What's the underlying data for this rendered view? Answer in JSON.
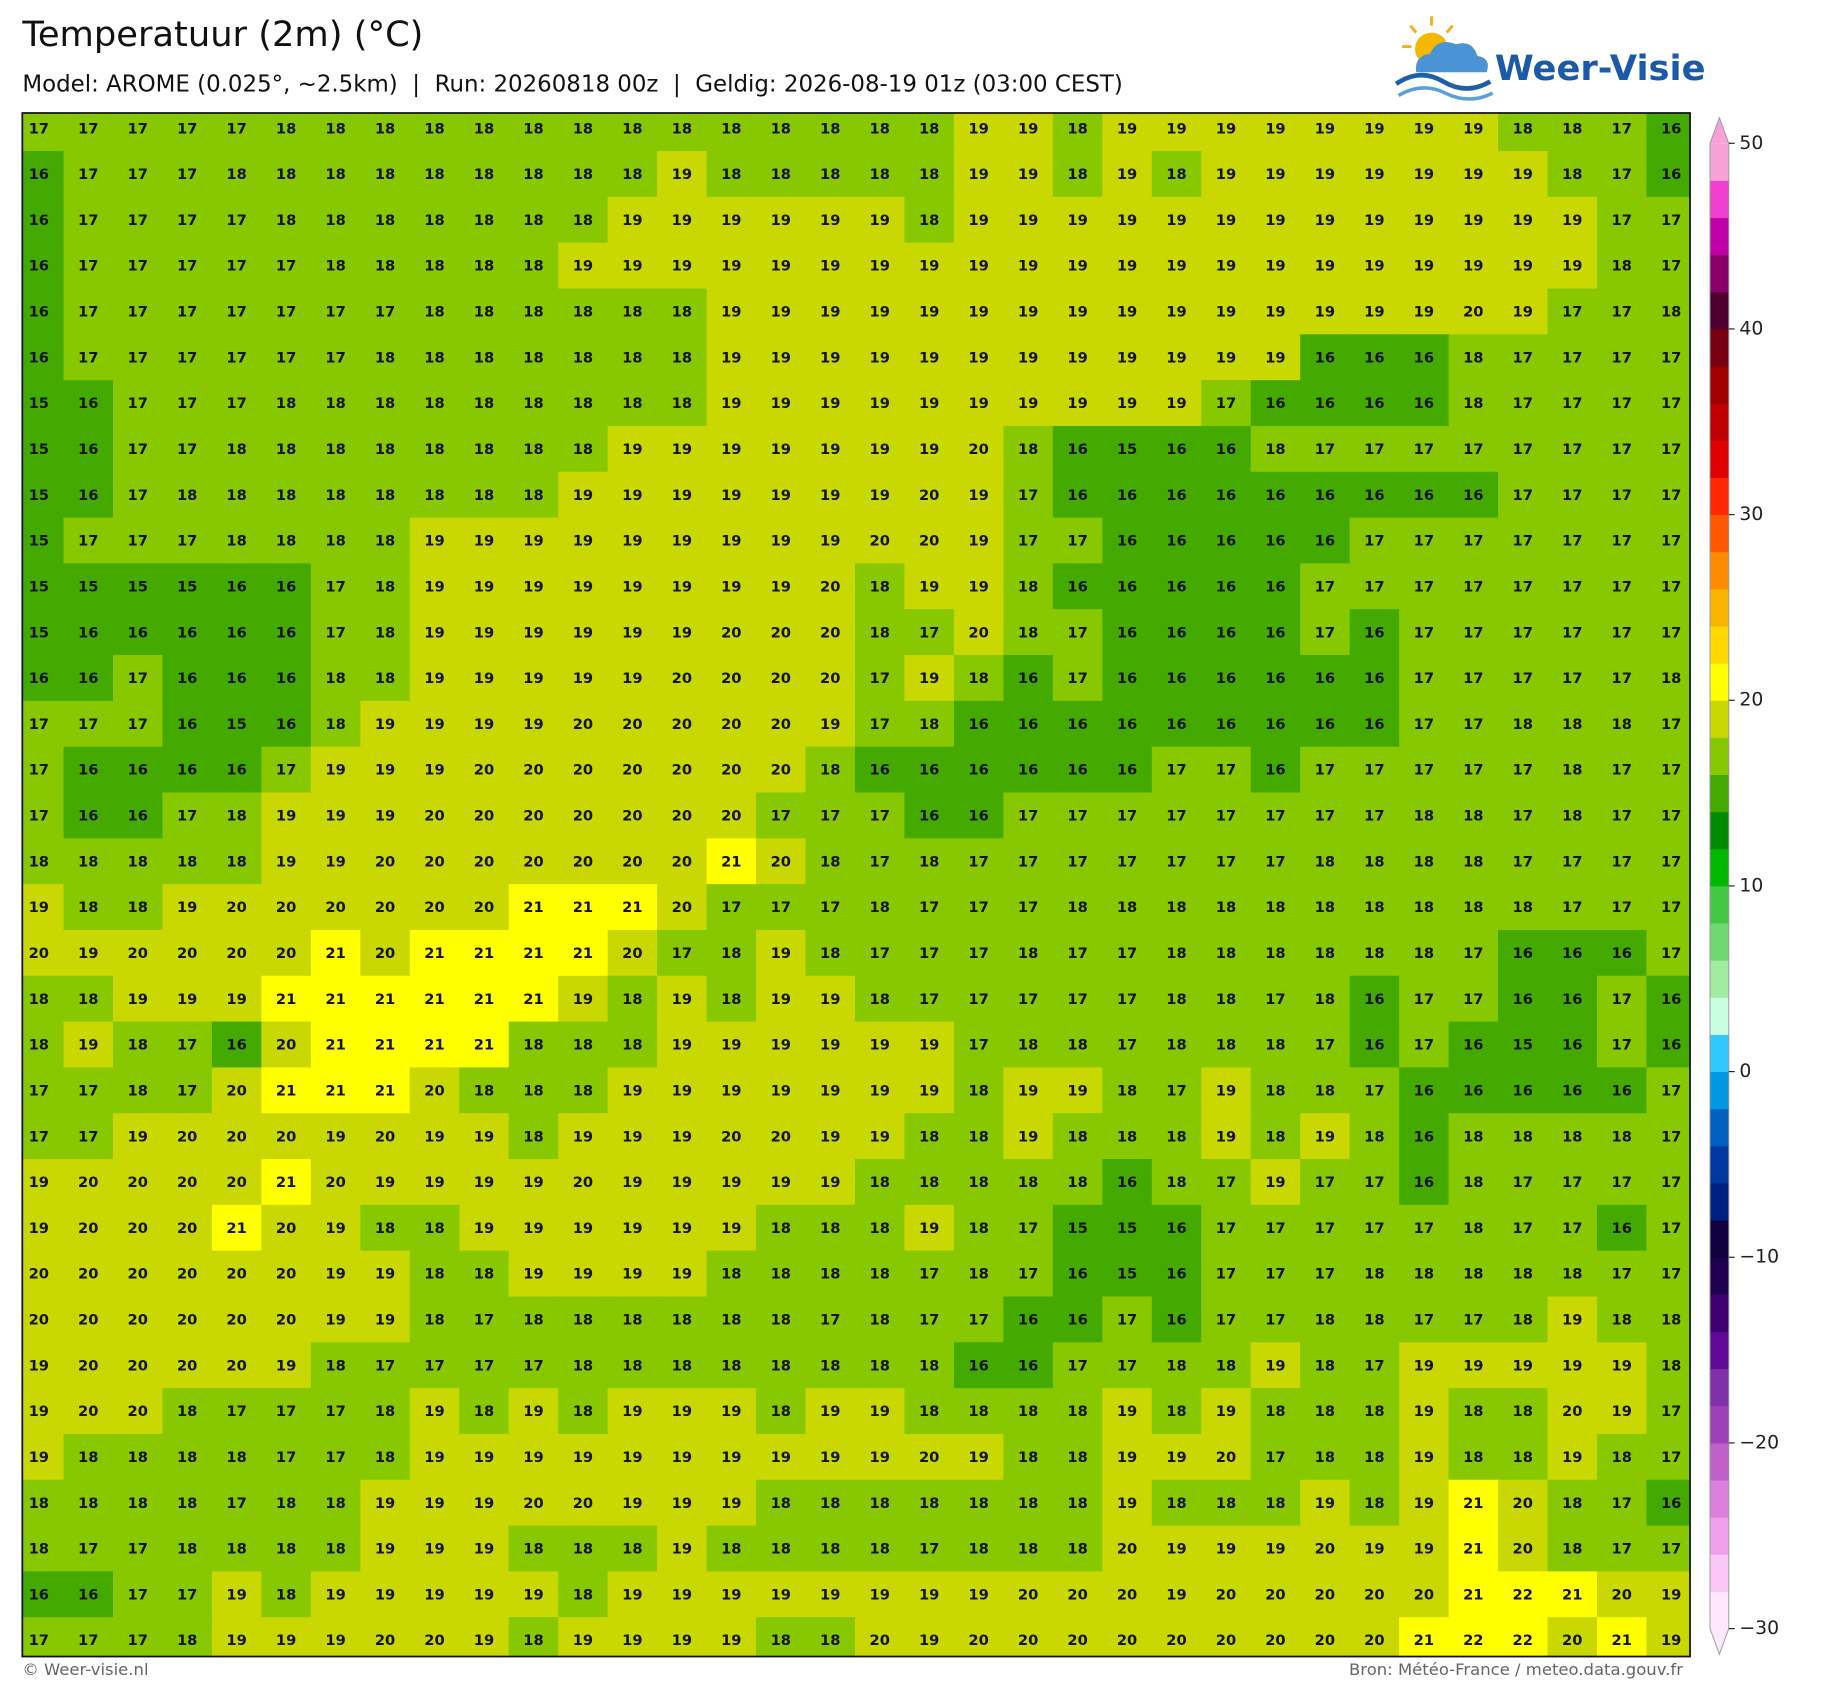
{
  "header": {
    "title": "Temperatuur (2m) (°C)",
    "subtitle": "Model: AROME (0.025°, ~2.5km)  |  Run: 20260818 00z  |  Geldig: 2026-08-19 01z (03:00 CEST)",
    "logo": "Weer-Visie"
  },
  "footer": {
    "left": "© Weer-visie.nl",
    "right": "Bron: Météo-France / meteo.data.gouv.fr"
  },
  "colorbar": {
    "lim": [
      -30,
      50
    ],
    "ticks": [
      {
        "value": -30,
        "label": "−30"
      },
      {
        "value": -20,
        "label": "−20"
      },
      {
        "value": -10,
        "label": "−10"
      },
      0,
      10,
      20,
      30,
      40,
      50
    ],
    "colors": [
      "#fde8fd",
      "#fbc8f5",
      "#f0a0ea",
      "#dd80dd",
      "#c060c8",
      "#a040b8",
      "#8030a8",
      "#600898",
      "#400070",
      "#200050",
      "#100040",
      "#002080",
      "#0038a0",
      "#0060c0",
      "#0098e0",
      "#30c8ff",
      "#c8ffe0",
      "#a0eca0",
      "#70d870",
      "#44c844",
      "#00b800",
      "#008c00",
      "#44aa00",
      "#88c800",
      "#c8d800",
      "#ffff00",
      "#ffd800",
      "#f8b400",
      "#ff8c00",
      "#ff5800",
      "#ff2800",
      "#e00000",
      "#c00000",
      "#a00000",
      "#780010",
      "#500030",
      "#8a006a",
      "#c000a8",
      "#f040d0",
      "#f8a0d8"
    ]
  },
  "map": {
    "rows": [
      [
        17,
        17,
        17,
        17,
        17,
        18,
        18,
        18,
        18,
        18,
        18,
        18,
        18,
        18,
        18,
        18,
        18,
        18,
        18,
        19,
        19,
        18,
        19,
        19,
        19,
        19,
        19,
        19,
        19,
        19,
        18,
        18,
        17,
        16
      ],
      [
        16,
        17,
        17,
        17,
        18,
        18,
        18,
        18,
        18,
        18,
        18,
        18,
        18,
        19,
        18,
        18,
        18,
        18,
        18,
        19,
        19,
        18,
        19,
        18,
        19,
        19,
        19,
        19,
        19,
        19,
        19,
        18,
        17,
        16
      ],
      [
        16,
        17,
        17,
        17,
        17,
        18,
        18,
        18,
        18,
        18,
        18,
        18,
        19,
        19,
        19,
        19,
        19,
        19,
        18,
        19,
        19,
        19,
        19,
        19,
        19,
        19,
        19,
        19,
        19,
        19,
        19,
        19,
        17,
        17
      ],
      [
        16,
        17,
        17,
        17,
        17,
        17,
        18,
        18,
        18,
        18,
        18,
        19,
        19,
        19,
        19,
        19,
        19,
        19,
        19,
        19,
        19,
        19,
        19,
        19,
        19,
        19,
        19,
        19,
        19,
        19,
        19,
        19,
        18,
        17
      ],
      [
        16,
        17,
        17,
        17,
        17,
        17,
        17,
        17,
        18,
        18,
        18,
        18,
        18,
        18,
        19,
        19,
        19,
        19,
        19,
        19,
        19,
        19,
        19,
        19,
        19,
        19,
        19,
        19,
        19,
        20,
        19,
        17,
        17,
        18
      ],
      [
        16,
        17,
        17,
        17,
        17,
        17,
        17,
        18,
        18,
        18,
        18,
        18,
        18,
        18,
        19,
        19,
        19,
        19,
        19,
        19,
        19,
        19,
        19,
        19,
        19,
        19,
        16,
        16,
        16,
        18,
        17,
        17,
        17,
        17
      ],
      [
        15,
        16,
        17,
        17,
        17,
        18,
        18,
        18,
        18,
        18,
        18,
        18,
        18,
        18,
        19,
        19,
        19,
        19,
        19,
        19,
        19,
        19,
        19,
        19,
        17,
        16,
        16,
        16,
        16,
        18,
        17,
        17,
        17,
        17
      ],
      [
        15,
        16,
        17,
        17,
        18,
        18,
        18,
        18,
        18,
        18,
        18,
        18,
        19,
        19,
        19,
        19,
        19,
        19,
        19,
        20,
        18,
        16,
        15,
        16,
        16,
        18,
        17,
        17,
        17,
        17,
        17,
        17,
        17,
        17
      ],
      [
        15,
        16,
        17,
        18,
        18,
        18,
        18,
        18,
        18,
        18,
        18,
        19,
        19,
        19,
        19,
        19,
        19,
        19,
        20,
        19,
        17,
        16,
        16,
        16,
        16,
        16,
        16,
        16,
        16,
        16,
        17,
        17,
        17,
        17
      ],
      [
        15,
        17,
        17,
        17,
        18,
        18,
        18,
        18,
        19,
        19,
        19,
        19,
        19,
        19,
        19,
        19,
        19,
        20,
        20,
        19,
        17,
        17,
        16,
        16,
        16,
        16,
        16,
        17,
        17,
        17,
        17,
        17,
        17,
        17
      ],
      [
        15,
        15,
        15,
        15,
        16,
        16,
        17,
        18,
        19,
        19,
        19,
        19,
        19,
        19,
        19,
        19,
        20,
        18,
        19,
        19,
        18,
        16,
        16,
        16,
        16,
        16,
        17,
        17,
        17,
        17,
        17,
        17,
        17,
        17
      ],
      [
        15,
        16,
        16,
        16,
        16,
        16,
        17,
        18,
        19,
        19,
        19,
        19,
        19,
        19,
        20,
        20,
        20,
        18,
        17,
        20,
        18,
        17,
        16,
        16,
        16,
        16,
        17,
        16,
        17,
        17,
        17,
        17,
        17,
        17
      ],
      [
        16,
        16,
        17,
        16,
        16,
        16,
        18,
        18,
        19,
        19,
        19,
        19,
        19,
        20,
        20,
        20,
        20,
        17,
        19,
        18,
        16,
        17,
        16,
        16,
        16,
        16,
        16,
        16,
        17,
        17,
        17,
        17,
        17,
        18
      ],
      [
        17,
        17,
        17,
        16,
        15,
        16,
        18,
        19,
        19,
        19,
        19,
        20,
        20,
        20,
        20,
        20,
        19,
        17,
        18,
        16,
        16,
        16,
        16,
        16,
        16,
        16,
        16,
        16,
        17,
        17,
        18,
        18,
        18,
        17
      ],
      [
        17,
        16,
        16,
        16,
        16,
        17,
        19,
        19,
        19,
        20,
        20,
        20,
        20,
        20,
        20,
        20,
        18,
        16,
        16,
        16,
        16,
        16,
        16,
        17,
        17,
        16,
        17,
        17,
        17,
        17,
        17,
        18,
        17,
        17
      ],
      [
        17,
        16,
        16,
        17,
        18,
        19,
        19,
        19,
        20,
        20,
        20,
        20,
        20,
        20,
        20,
        17,
        17,
        17,
        16,
        16,
        17,
        17,
        17,
        17,
        17,
        17,
        17,
        17,
        18,
        18,
        17,
        18,
        17,
        17
      ],
      [
        18,
        18,
        18,
        18,
        18,
        19,
        19,
        20,
        20,
        20,
        20,
        20,
        20,
        20,
        21,
        20,
        18,
        17,
        18,
        17,
        17,
        17,
        17,
        17,
        17,
        17,
        18,
        18,
        18,
        18,
        17,
        17,
        17,
        17
      ],
      [
        19,
        18,
        18,
        19,
        20,
        20,
        20,
        20,
        20,
        20,
        21,
        21,
        21,
        20,
        17,
        17,
        17,
        18,
        17,
        17,
        17,
        18,
        18,
        18,
        18,
        18,
        18,
        18,
        18,
        18,
        18,
        17,
        17,
        17
      ],
      [
        20,
        19,
        20,
        20,
        20,
        20,
        21,
        20,
        21,
        21,
        21,
        21,
        20,
        17,
        18,
        19,
        18,
        17,
        17,
        17,
        18,
        17,
        17,
        18,
        18,
        18,
        18,
        18,
        18,
        17,
        16,
        16,
        16,
        17
      ],
      [
        18,
        18,
        19,
        19,
        19,
        21,
        21,
        21,
        21,
        21,
        21,
        19,
        18,
        19,
        18,
        19,
        19,
        18,
        17,
        17,
        17,
        17,
        17,
        18,
        18,
        17,
        18,
        16,
        17,
        17,
        16,
        16,
        17,
        16
      ],
      [
        18,
        19,
        18,
        17,
        16,
        20,
        21,
        21,
        21,
        21,
        18,
        18,
        18,
        19,
        19,
        19,
        19,
        19,
        19,
        17,
        18,
        18,
        17,
        18,
        18,
        18,
        17,
        16,
        17,
        16,
        15,
        16,
        17,
        16
      ],
      [
        17,
        17,
        18,
        17,
        20,
        21,
        21,
        21,
        20,
        18,
        18,
        18,
        19,
        19,
        19,
        19,
        19,
        19,
        19,
        18,
        19,
        19,
        18,
        17,
        19,
        18,
        18,
        17,
        16,
        16,
        16,
        16,
        16,
        17
      ],
      [
        17,
        17,
        19,
        20,
        20,
        20,
        19,
        20,
        19,
        19,
        18,
        19,
        19,
        19,
        20,
        20,
        19,
        19,
        18,
        18,
        19,
        18,
        18,
        18,
        19,
        18,
        19,
        18,
        16,
        18,
        18,
        18,
        18,
        17
      ],
      [
        19,
        20,
        20,
        20,
        20,
        21,
        20,
        19,
        19,
        19,
        19,
        20,
        19,
        19,
        19,
        19,
        19,
        18,
        18,
        18,
        18,
        18,
        16,
        18,
        17,
        19,
        17,
        17,
        16,
        18,
        17,
        17,
        17,
        17
      ],
      [
        19,
        20,
        20,
        20,
        21,
        20,
        19,
        18,
        18,
        19,
        19,
        19,
        19,
        19,
        19,
        18,
        18,
        18,
        19,
        18,
        17,
        15,
        15,
        16,
        17,
        17,
        17,
        17,
        17,
        18,
        17,
        17,
        16,
        17
      ],
      [
        20,
        20,
        20,
        20,
        20,
        20,
        19,
        19,
        18,
        18,
        19,
        19,
        19,
        19,
        18,
        18,
        18,
        18,
        17,
        18,
        17,
        16,
        15,
        16,
        17,
        17,
        17,
        18,
        18,
        18,
        18,
        18,
        17,
        17
      ],
      [
        20,
        20,
        20,
        20,
        20,
        20,
        19,
        19,
        18,
        17,
        18,
        18,
        18,
        18,
        18,
        18,
        17,
        18,
        17,
        17,
        16,
        16,
        17,
        16,
        17,
        17,
        18,
        18,
        17,
        17,
        18,
        19,
        18,
        18
      ],
      [
        19,
        20,
        20,
        20,
        20,
        19,
        18,
        17,
        17,
        17,
        17,
        18,
        18,
        18,
        18,
        18,
        18,
        18,
        18,
        16,
        16,
        17,
        17,
        18,
        18,
        19,
        18,
        17,
        19,
        19,
        19,
        19,
        19,
        18
      ],
      [
        19,
        20,
        20,
        18,
        17,
        17,
        17,
        18,
        19,
        18,
        19,
        18,
        19,
        19,
        19,
        18,
        19,
        19,
        18,
        18,
        18,
        18,
        19,
        18,
        19,
        18,
        18,
        18,
        19,
        18,
        18,
        20,
        19,
        17
      ],
      [
        19,
        18,
        18,
        18,
        18,
        17,
        17,
        18,
        19,
        19,
        19,
        19,
        19,
        19,
        19,
        19,
        19,
        19,
        20,
        19,
        18,
        18,
        19,
        19,
        20,
        17,
        18,
        18,
        19,
        18,
        18,
        19,
        18,
        17
      ],
      [
        18,
        18,
        18,
        18,
        17,
        18,
        18,
        19,
        19,
        19,
        20,
        20,
        19,
        19,
        19,
        18,
        18,
        18,
        18,
        18,
        18,
        18,
        19,
        18,
        18,
        18,
        19,
        18,
        19,
        21,
        20,
        18,
        17,
        16
      ],
      [
        18,
        17,
        17,
        18,
        18,
        18,
        18,
        19,
        19,
        19,
        18,
        18,
        18,
        19,
        18,
        18,
        18,
        18,
        17,
        18,
        18,
        18,
        20,
        19,
        19,
        19,
        20,
        19,
        19,
        21,
        20,
        18,
        17,
        17
      ],
      [
        16,
        16,
        17,
        17,
        19,
        18,
        19,
        19,
        19,
        19,
        19,
        18,
        19,
        19,
        19,
        19,
        19,
        19,
        19,
        19,
        20,
        20,
        20,
        19,
        20,
        20,
        20,
        20,
        20,
        21,
        22,
        21,
        20,
        19
      ],
      [
        17,
        17,
        17,
        18,
        19,
        19,
        19,
        20,
        20,
        19,
        18,
        19,
        19,
        19,
        19,
        18,
        18,
        20,
        19,
        20,
        20,
        20,
        20,
        20,
        20,
        20,
        20,
        20,
        21,
        22,
        22,
        20,
        21,
        19
      ]
    ]
  }
}
